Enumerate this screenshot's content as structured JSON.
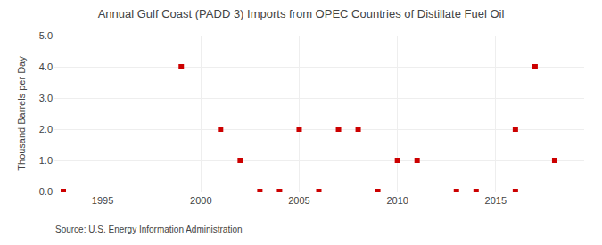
{
  "chart_data": {
    "type": "scatter",
    "title": "Annual Gulf Coast (PADD 3) Imports from OPEC Countries of Distillate Fuel Oil",
    "y_label": "Thousand Barrels per Day",
    "annotations": [
      "Source: U.S. Energy Information Administration"
    ],
    "x": [
      1993,
      1999,
      2001,
      2002,
      2003,
      2004,
      2005,
      2006,
      2007,
      2008,
      2009,
      2010,
      2011,
      2013,
      2014,
      2016,
      2016,
      2017,
      2018
    ],
    "values": [
      0.0,
      4.0,
      2.0,
      1.0,
      0.0,
      0.0,
      2.0,
      0.0,
      2.0,
      2.0,
      0.0,
      1.0,
      1.0,
      0.0,
      0.0,
      2.0,
      0.0,
      4.0,
      1.0
    ],
    "color": "#cc0000",
    "marker": "square",
    "xlim": [
      1992.5,
      2019.5
    ],
    "xticks": [
      1995,
      2000,
      2005,
      2010,
      2015
    ],
    "ylim": [
      0.0,
      5.0
    ],
    "yticks": [
      {
        "value": 0.0,
        "label": "0.0"
      },
      {
        "value": 1.0,
        "label": "1.0"
      },
      {
        "value": 2.0,
        "label": "2.0"
      },
      {
        "value": 3.0,
        "label": "3.0"
      },
      {
        "value": 4.0,
        "label": "4.0"
      },
      {
        "value": 5.0,
        "label": "5.0"
      }
    ],
    "grid": true
  }
}
